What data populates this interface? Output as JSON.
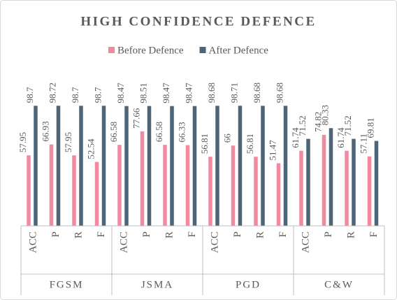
{
  "chart_data": {
    "type": "bar",
    "title": "HIGH CONFIDENCE DEFENCE",
    "categories": [
      "ACC",
      "P",
      "R",
      "F",
      "ACC",
      "P",
      "R",
      "F",
      "ACC",
      "P",
      "R",
      "F",
      "ACC",
      "P",
      "R",
      "F"
    ],
    "groups": [
      "FGSM",
      "JSMA",
      "PGD",
      "C&W"
    ],
    "series": [
      {
        "name": "Before Defence",
        "color": "#f2899f",
        "values": [
          57.95,
          66.93,
          57.95,
          52.54,
          66.58,
          77.66,
          66.58,
          66.33,
          56.81,
          66,
          56.81,
          51.47,
          61.74,
          74.82,
          61.74,
          57.11
        ]
      },
      {
        "name": "After Defence",
        "color": "#4e6577",
        "values": [
          98.7,
          98.72,
          98.7,
          98.7,
          98.47,
          98.51,
          98.47,
          98.47,
          98.68,
          98.71,
          98.68,
          98.68,
          71.52,
          80.33,
          71.52,
          69.81
        ]
      }
    ],
    "ylim": [
      0,
      100
    ],
    "legend": "top"
  }
}
